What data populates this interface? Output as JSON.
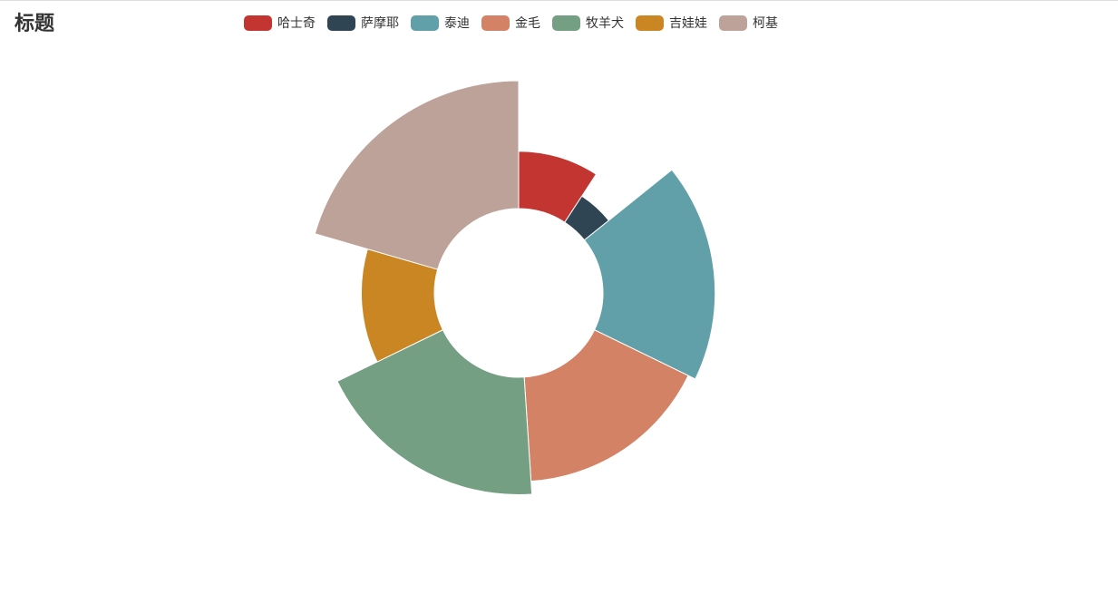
{
  "chart_data": {
    "type": "pie",
    "rose": "radius",
    "title": "标题",
    "categories": [
      "哈士奇",
      "萨摩耶",
      "泰迪",
      "金毛",
      "牧羊犬",
      "吉娃娃",
      "柯基"
    ],
    "values": [
      22,
      12,
      43,
      40,
      45,
      28,
      49
    ],
    "colors": [
      "#c23531",
      "#2f4554",
      "#61a0a8",
      "#d48265",
      "#749f83",
      "#ca8622",
      "#bda29a"
    ]
  }
}
